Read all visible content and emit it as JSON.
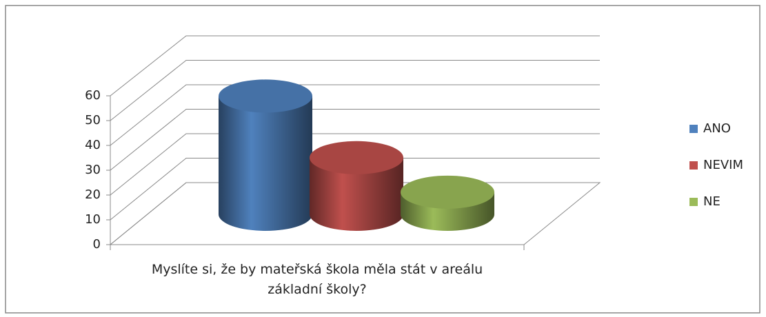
{
  "chart_data": {
    "type": "bar",
    "categories": [
      "Myslíte si, že by mateřská škola měla stát v areálu základní školy?"
    ],
    "series": [
      {
        "name": "ANO",
        "color": "#4f81bd",
        "values": [
          48
        ]
      },
      {
        "name": "NEVIM",
        "color": "#c0504d",
        "values": [
          23
        ]
      },
      {
        "name": "NE",
        "color": "#9bbb59",
        "values": [
          9
        ]
      }
    ],
    "ylim": [
      0,
      60
    ],
    "yticks": [
      0,
      10,
      20,
      30,
      40,
      50,
      60
    ],
    "grid": true,
    "legend": "right"
  }
}
